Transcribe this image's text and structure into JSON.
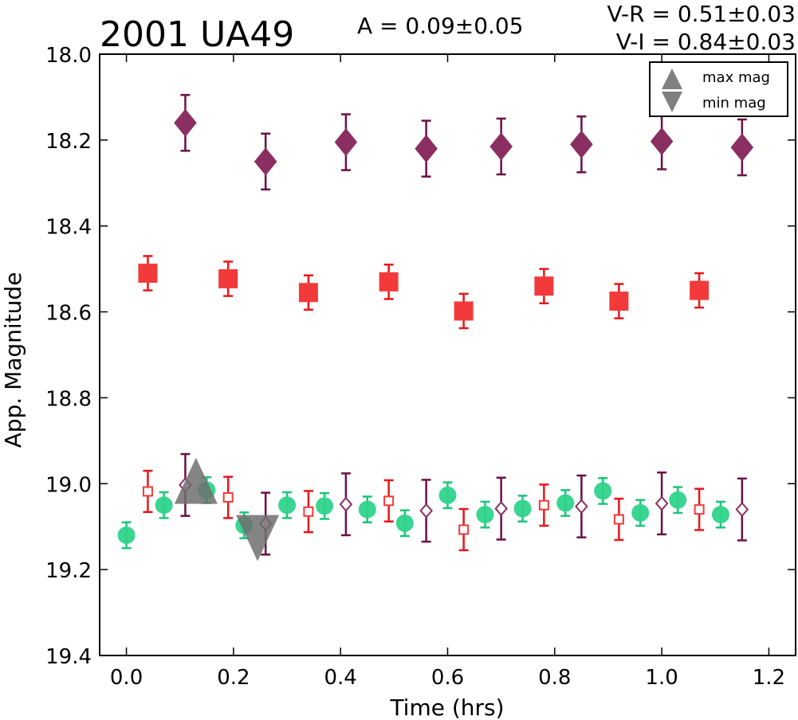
{
  "chart_data": {
    "type": "scatter",
    "title": "2001 UA49",
    "amplitude_label": "A  = 0.09±0.05",
    "color_labels": [
      "V-R = 0.51±0.03",
      "V-I  = 0.84±0.03"
    ],
    "xlabel": "Time (hrs)",
    "ylabel": "App. Magnitude",
    "xlim": [
      -0.05,
      1.25
    ],
    "ylim": [
      19.4,
      18.0
    ],
    "y_inverted": true,
    "xticks": [
      "0.0",
      "0.2",
      "0.4",
      "0.6",
      "0.8",
      "1.0",
      "1.2"
    ],
    "yticks": [
      "18.0",
      "18.2",
      "18.4",
      "18.6",
      "18.8",
      "19.0",
      "19.2",
      "19.4"
    ],
    "grid": false,
    "legend_position": "top-right",
    "legend": [
      {
        "label": "max mag",
        "marker": "triangle-up"
      },
      {
        "label": "min mag",
        "marker": "triangle-down"
      }
    ],
    "series": [
      {
        "marker": "diamond",
        "filled": true,
        "color": "#8b2f62",
        "err_color": "#6b0f45",
        "x": [
          0.11,
          0.26,
          0.41,
          0.56,
          0.7,
          0.85,
          1.0,
          1.15
        ],
        "y": [
          18.16,
          18.25,
          18.205,
          18.22,
          18.215,
          18.21,
          18.203,
          18.217
        ],
        "err": [
          0.065,
          0.065,
          0.065,
          0.065,
          0.065,
          0.065,
          0.065,
          0.065
        ]
      },
      {
        "marker": "square",
        "filled": true,
        "color": "#f23a3a",
        "err_color": "#e8161b",
        "x": [
          0.04,
          0.19,
          0.34,
          0.49,
          0.63,
          0.78,
          0.92,
          1.07
        ],
        "y": [
          18.51,
          18.523,
          18.555,
          18.53,
          18.598,
          18.54,
          18.575,
          18.55
        ],
        "err": [
          0.04,
          0.04,
          0.04,
          0.04,
          0.04,
          0.04,
          0.04,
          0.04
        ]
      },
      {
        "marker": "circle",
        "filled": true,
        "color": "#2fd38a",
        "err_color": "#1ec37a",
        "x": [
          0.0,
          0.07,
          0.15,
          0.22,
          0.3,
          0.37,
          0.45,
          0.52,
          0.6,
          0.67,
          0.74,
          0.82,
          0.89,
          0.96,
          1.03,
          1.11
        ],
        "y": [
          19.12,
          19.05,
          19.015,
          19.097,
          19.05,
          19.052,
          19.06,
          19.092,
          19.027,
          19.072,
          19.058,
          19.045,
          19.017,
          19.068,
          19.038,
          19.072
        ],
        "err": [
          0.03,
          0.03,
          0.03,
          0.03,
          0.03,
          0.03,
          0.03,
          0.03,
          0.03,
          0.03,
          0.03,
          0.03,
          0.03,
          0.03,
          0.03,
          0.03
        ]
      },
      {
        "marker": "square",
        "filled": false,
        "color": "#f23a3a",
        "err_color": "#e8161b",
        "x": [
          0.04,
          0.19,
          0.34,
          0.49,
          0.63,
          0.78,
          0.92,
          1.07
        ],
        "y": [
          19.018,
          19.032,
          19.065,
          19.04,
          19.107,
          19.05,
          19.083,
          19.06
        ],
        "err": [
          0.048,
          0.048,
          0.048,
          0.048,
          0.048,
          0.048,
          0.048,
          0.048
        ]
      },
      {
        "marker": "diamond",
        "filled": false,
        "color": "#8b2f62",
        "err_color": "#6b0f45",
        "x": [
          0.11,
          0.26,
          0.41,
          0.56,
          0.7,
          0.85,
          1.0,
          1.15
        ],
        "y": [
          19.003,
          19.093,
          19.048,
          19.063,
          19.058,
          19.053,
          19.046,
          19.06
        ],
        "err": [
          0.072,
          0.072,
          0.072,
          0.072,
          0.072,
          0.072,
          0.072,
          0.072
        ]
      }
    ],
    "extrema": [
      {
        "label": "max mag",
        "marker": "triangle-up",
        "x": 0.13,
        "y": 19.01
      },
      {
        "label": "min mag",
        "marker": "triangle-down",
        "x": 0.245,
        "y": 19.11
      }
    ]
  }
}
